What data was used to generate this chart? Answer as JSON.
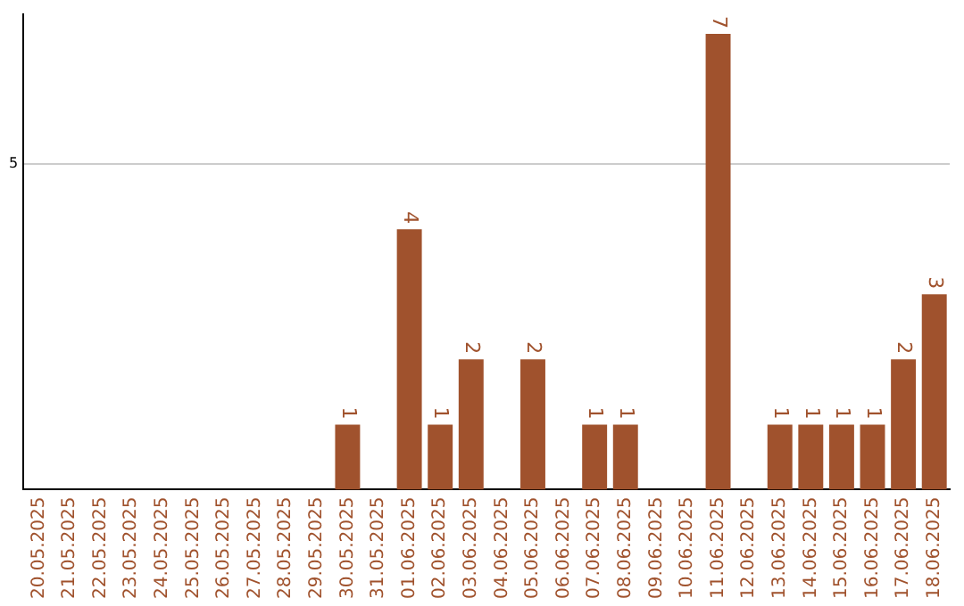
{
  "chart_data": {
    "type": "bar",
    "categories": [
      "20.05.2025",
      "21.05.2025",
      "22.05.2025",
      "23.05.2025",
      "24.05.2025",
      "25.05.2025",
      "26.05.2025",
      "27.05.2025",
      "28.05.2025",
      "29.05.2025",
      "30.05.2025",
      "31.05.2025",
      "01.06.2025",
      "02.06.2025",
      "03.06.2025",
      "04.06.2025",
      "05.06.2025",
      "06.06.2025",
      "07.06.2025",
      "08.06.2025",
      "09.06.2025",
      "10.06.2025",
      "11.06.2025",
      "12.06.2025",
      "13.06.2025",
      "14.06.2025",
      "15.06.2025",
      "16.06.2025",
      "17.06.2025",
      "18.06.2025"
    ],
    "values": [
      0,
      0,
      0,
      0,
      0,
      0,
      0,
      0,
      0,
      0,
      1,
      0,
      4,
      1,
      2,
      0,
      2,
      0,
      1,
      1,
      0,
      0,
      7,
      0,
      1,
      1,
      1,
      1,
      2,
      3
    ],
    "color": "#a0522d",
    "value_labels": [
      null,
      null,
      null,
      null,
      null,
      null,
      null,
      null,
      null,
      null,
      "1",
      null,
      "4",
      "1",
      "2",
      null,
      "2",
      null,
      "1",
      "1",
      null,
      null,
      "7",
      null,
      "1",
      "1",
      "1",
      "1",
      "2",
      "3"
    ],
    "ylim": [
      0,
      7.3
    ],
    "yticks": [
      5
    ],
    "grid": "y",
    "legend": false
  }
}
